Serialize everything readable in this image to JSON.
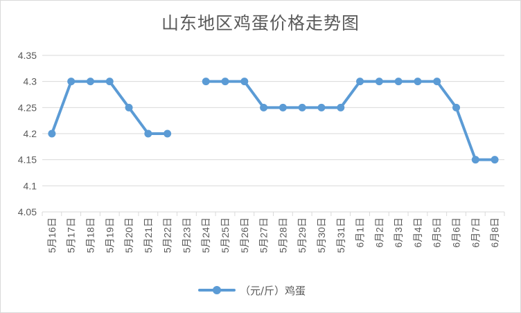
{
  "chart_data": {
    "type": "line",
    "title": "山东地区鸡蛋价格走势图",
    "categories": [
      "5月16日",
      "5月17日",
      "5月18日",
      "5月19日",
      "5月20日",
      "5月21日",
      "5月22日",
      "5月23日",
      "5月24日",
      "5月25日",
      "5月26日",
      "5月27日",
      "5月28日",
      "5月29日",
      "5月30日",
      "5月31日",
      "6月1日",
      "6月2日",
      "6月3日",
      "6月4日",
      "6月5日",
      "6月6日",
      "6月7日",
      "6月8日"
    ],
    "series": [
      {
        "name": "（元/斤）鸡蛋",
        "values": [
          4.2,
          4.3,
          4.3,
          4.3,
          4.25,
          4.2,
          4.2,
          null,
          4.3,
          4.3,
          4.3,
          4.25,
          4.25,
          4.25,
          4.25,
          4.25,
          4.3,
          4.3,
          4.3,
          4.3,
          4.3,
          4.25,
          4.15,
          4.15
        ],
        "color": "#5b9bd5"
      }
    ],
    "yticks": [
      "4.05",
      "4.1",
      "4.15",
      "4.2",
      "4.25",
      "4.3",
      "4.35"
    ],
    "ylim": [
      4.05,
      4.35
    ],
    "grid": true,
    "legend": "bottom",
    "gridColor": "#d9d9d9",
    "textColor": "#595959"
  }
}
